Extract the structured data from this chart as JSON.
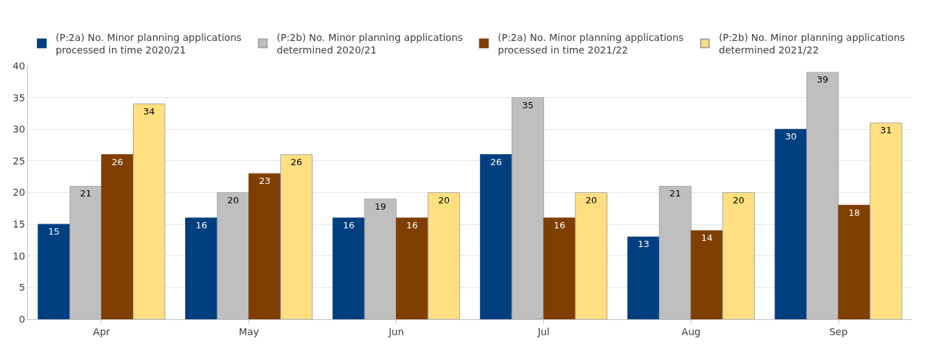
{
  "chart_data": {
    "type": "bar",
    "categories": [
      "Apr",
      "May",
      "Jun",
      "Jul",
      "Aug",
      "Sep"
    ],
    "series": [
      {
        "name": "(P:2a) No. Minor planning applications processed in time 2020/21",
        "color": "#003f7f",
        "values": [
          15,
          16,
          16,
          26,
          13,
          30
        ]
      },
      {
        "name": "(P:2b) No. Minor planning applications determined 2020/21",
        "color": "#bfbfbf",
        "values": [
          21,
          20,
          19,
          35,
          21,
          39
        ]
      },
      {
        "name": "(P:2a) No. Minor planning applications processed in time 2021/22",
        "color": "#7f3f00",
        "values": [
          26,
          23,
          16,
          16,
          14,
          18
        ]
      },
      {
        "name": "(P:2b) No. Minor planning applications determined 2021/22",
        "color": "#ffdf7f",
        "values": [
          34,
          26,
          20,
          20,
          20,
          31
        ]
      }
    ],
    "ylim": [
      0,
      40
    ],
    "yticks": [
      0,
      5,
      10,
      15,
      20,
      25,
      30,
      35,
      40
    ],
    "grid": "y",
    "legend": "top",
    "data_labels": true
  }
}
